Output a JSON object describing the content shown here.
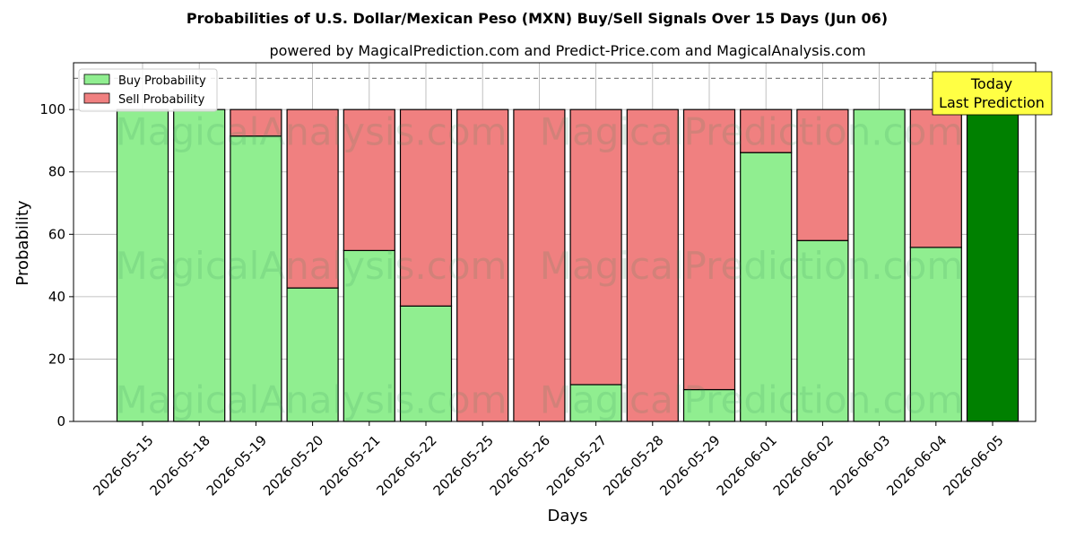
{
  "chart_data": {
    "type": "bar",
    "stacked": true,
    "title": "Probabilities of U.S. Dollar/Mexican Peso (MXN) Buy/Sell Signals Over 15 Days (Jun 06)",
    "subtitle": "powered by MagicalPrediction.com and Predict-Price.com and MagicalAnalysis.com",
    "xlabel": "Days",
    "ylabel": "Probability",
    "ylim": [
      0,
      115
    ],
    "yticks": [
      0,
      20,
      40,
      60,
      80,
      100
    ],
    "reference_line": 110,
    "grid": true,
    "legend_position": "top-left",
    "categories": [
      "2026-05-15",
      "2026-05-18",
      "2026-05-19",
      "2026-05-20",
      "2026-05-21",
      "2026-05-22",
      "2026-05-25",
      "2026-05-26",
      "2026-05-27",
      "2026-05-28",
      "2026-05-29",
      "2026-06-01",
      "2026-06-02",
      "2026-06-03",
      "2026-06-04",
      "2026-06-05"
    ],
    "series": [
      {
        "name": "Buy Probability",
        "color": "#90ee90",
        "values": [
          100,
          100,
          91.5,
          42.8,
          54.8,
          37,
          0,
          0,
          11.8,
          0,
          10.2,
          86.2,
          58,
          100,
          55.8,
          100
        ]
      },
      {
        "name": "Sell Probability",
        "color": "#f08080",
        "values": [
          0,
          0,
          8.5,
          57.2,
          45.2,
          63,
          100,
          100,
          88.2,
          100,
          89.8,
          13.8,
          42,
          0,
          44.2,
          0
        ]
      }
    ],
    "today_bar_color": "#008000",
    "today_annotation": {
      "line1": "Today",
      "line2": "Last Prediction",
      "color": "#ffff44"
    },
    "watermarks": [
      "MagicalAnalysis.com",
      "MagicalPrediction.com"
    ]
  }
}
